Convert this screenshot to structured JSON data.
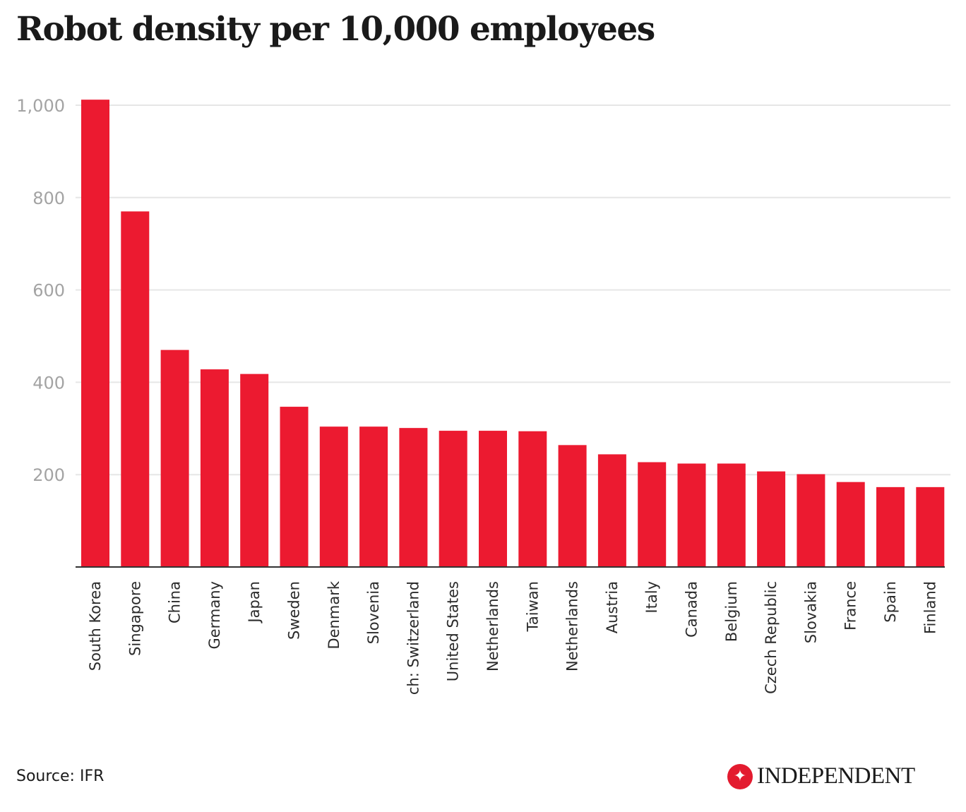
{
  "header": {
    "title": "Robot density per 10,000 employees"
  },
  "footer": {
    "source": "Source: IFR",
    "brand_name": "INDEPENDENT",
    "brand_icon": "eagle-logo-icon"
  },
  "colors": {
    "bar": "#ec1a30",
    "grid": "#e6e6e6",
    "axis": "#333333"
  },
  "chart_data": {
    "type": "bar",
    "title": "Robot density per 10,000 employees",
    "xlabel": "",
    "ylabel": "",
    "ylim": [
      0,
      1000
    ],
    "yticks": [
      200,
      400,
      600,
      800,
      1000
    ],
    "ytick_labels": [
      "200",
      "400",
      "600",
      "800",
      "1,000"
    ],
    "grid": true,
    "legend": "none",
    "categories": [
      "South Korea",
      "Singapore",
      "China",
      "Germany",
      "Japan",
      "Sweden",
      "Denmark",
      "Slovenia",
      "ch: Switzerland",
      "United States",
      "Netherlands",
      "Taiwan",
      "Netherlands",
      "Austria",
      "Italy",
      "Canada",
      "Belgium",
      "Czech Republic",
      "Slovakia",
      "France",
      "Spain",
      "Finland"
    ],
    "values": [
      1012,
      770,
      470,
      428,
      418,
      347,
      304,
      304,
      301,
      295,
      295,
      294,
      264,
      244,
      227,
      224,
      224,
      207,
      201,
      184,
      173,
      173
    ]
  }
}
